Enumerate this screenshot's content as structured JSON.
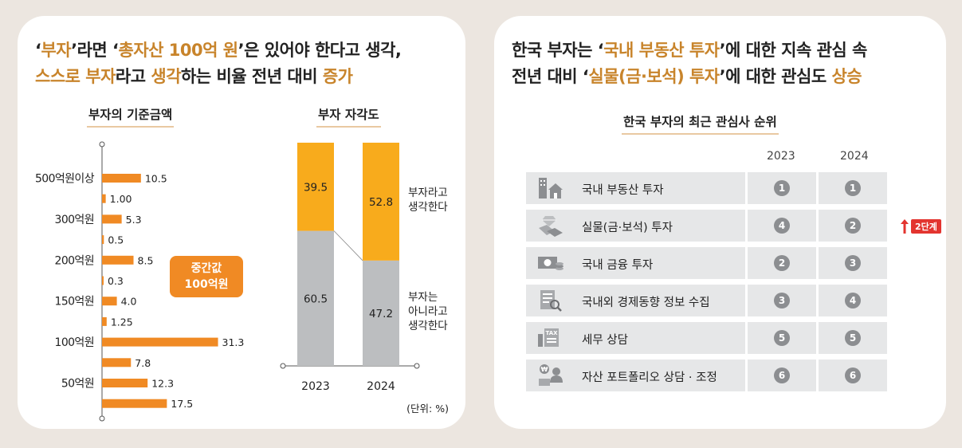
{
  "left": {
    "headline_line1": [
      {
        "t": "‘",
        "hl": false
      },
      {
        "t": "부자",
        "hl": true
      },
      {
        "t": "’라면 ‘",
        "hl": false
      },
      {
        "t": "총자산 100억 원",
        "hl": true
      },
      {
        "t": "’은 있어야 한다고 생각,",
        "hl": false
      }
    ],
    "headline_line2": [
      {
        "t": "스스로 부자",
        "hl": true
      },
      {
        "t": "라고 ",
        "hl": false
      },
      {
        "t": "생각",
        "hl": true
      },
      {
        "t": "하는 비율 전년 대비 ",
        "hl": false
      },
      {
        "t": "증가",
        "hl": true
      }
    ]
  },
  "right": {
    "headline_line1": [
      {
        "t": "한국 부자는 ‘",
        "hl": false
      },
      {
        "t": "국내 부동산 투자",
        "hl": true
      },
      {
        "t": "’에 대한 지속 관심 속",
        "hl": false
      }
    ],
    "headline_line2": [
      {
        "t": "전년 대비 ‘",
        "hl": false
      },
      {
        "t": "실물(금·보석) 투자",
        "hl": true
      },
      {
        "t": "’에 대한 관심도 ",
        "hl": false
      },
      {
        "t": "상승",
        "hl": true
      }
    ]
  },
  "chart_data": [
    {
      "type": "bar",
      "orientation": "horizontal",
      "title": "부자의 기준금액",
      "group_labels": [
        "500억원이상",
        "300억원",
        "200억원",
        "150억원",
        "100억원",
        "50억원"
      ],
      "bars": [
        {
          "group": "500억원이상",
          "value": 10.5,
          "label": "10.5"
        },
        {
          "group": "500억원이상",
          "value": 1.0,
          "label": "1.00"
        },
        {
          "group": "300억원",
          "value": 5.3,
          "label": "5.3"
        },
        {
          "group": "300억원",
          "value": 0.5,
          "label": "0.5"
        },
        {
          "group": "200억원",
          "value": 8.5,
          "label": "8.5"
        },
        {
          "group": "200억원",
          "value": 0.3,
          "label": "0.3"
        },
        {
          "group": "150억원",
          "value": 4.0,
          "label": "4.0"
        },
        {
          "group": "150억원",
          "value": 1.25,
          "label": "1.25"
        },
        {
          "group": "100억원",
          "value": 31.3,
          "label": "31.3"
        },
        {
          "group": "100억원",
          "value": 7.8,
          "label": "7.8"
        },
        {
          "group": "50억원",
          "value": 12.3,
          "label": "12.3"
        },
        {
          "group": "50억원",
          "value": 17.5,
          "label": "17.5"
        }
      ],
      "annotation": [
        "중간값",
        "100억원"
      ],
      "bar_color": "#f08a24"
    },
    {
      "type": "bar",
      "stacked": true,
      "title": "부자 자각도",
      "categories": [
        "2023",
        "2024"
      ],
      "series": [
        {
          "name": "부자는 아니라고 생각한다",
          "label_lines": [
            "부자는",
            "아니라고",
            "생각한다"
          ],
          "values": [
            60.5,
            47.2
          ],
          "color": "#bcbec0"
        },
        {
          "name": "부자라고 생각한다",
          "label_lines": [
            "부자라고",
            "생각한다"
          ],
          "values": [
            39.5,
            52.8
          ],
          "color": "#f8ab1c"
        }
      ],
      "unit_note": "(단위: %)",
      "ylim": [
        0,
        100
      ]
    },
    {
      "type": "table",
      "title": "한국 부자의 최근 관심사 순위",
      "columns": [
        "2023",
        "2024"
      ],
      "rows": [
        {
          "icon": "building-house-icon",
          "label": "국내 부동산 투자",
          "y2023": "1",
          "y2024": "1",
          "change": ""
        },
        {
          "icon": "gold-diamond-icon",
          "label": "실물(금·보석) 투자",
          "y2023": "4",
          "y2024": "2",
          "change": "2단계"
        },
        {
          "icon": "cash-coins-icon",
          "label": "국내 금융 투자",
          "y2023": "2",
          "y2024": "3",
          "change": ""
        },
        {
          "icon": "news-search-icon",
          "label": "국내외 경제동향 정보 수집",
          "y2023": "3",
          "y2024": "4",
          "change": ""
        },
        {
          "icon": "tax-document-icon",
          "label": "세무 상담",
          "y2023": "5",
          "y2024": "5",
          "change": ""
        },
        {
          "icon": "portfolio-advisor-icon",
          "label": "자산 포트폴리오 상담 · 조정",
          "y2023": "6",
          "y2024": "6",
          "change": ""
        }
      ],
      "change_color": "#e3342f"
    }
  ]
}
